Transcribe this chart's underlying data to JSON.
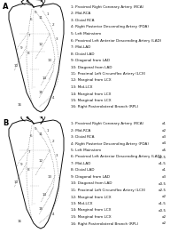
{
  "title_A": "A",
  "title_B": "B",
  "bg_color": "#ffffff",
  "legend_A": [
    "1: Proximal Right Coronary Artery (RCA)",
    "2: Mid-RCA",
    "3: Distal RCA",
    "4: Right Posterior Descending Artery (PDA)",
    "5: Left Mainstem",
    "6: Proximal Left Anterior Descending Artery (LAD)",
    "7: Mid-LAD",
    "8: Distal LAD",
    "9: Diagonal from LAD",
    "10: Diagonal from LAD",
    "11: Proximal Left Circumflex Artery (LCX)",
    "12: Marginal from LCX",
    "13: Mid-LCX",
    "14: Marginal from LCX",
    "15: Marginal from LCX",
    "16: Right Posterolateral Branch (RPL)"
  ],
  "legend_B_labels": [
    "1: Proximal Right Coronary Artery (RCA)",
    "2: Mid-RCA",
    "3: Distal RCA",
    "4: Right Posterior Descending Artery (PDA)",
    "5: Left Mainstem",
    "6: Proximal Left Anterior Descending Artery (LAD)",
    "7: Mid-LAD",
    "8: Distal LAD",
    "9: Diagonal from LAD",
    "10: Diagonal from LAD",
    "11: Proximal Left Circumflex Artery (LCX)",
    "12: Marginal from LCX",
    "13: Mid-LCX",
    "14: Marginal from LCX",
    "15: Marginal from LCX",
    "16: Right Posterolateral Branch (RPL)"
  ],
  "legend_B_values": [
    "x1",
    "x2",
    "x3",
    "x4",
    "x5",
    "x2.5",
    "x1.5",
    "x1",
    "x3",
    "x0.5",
    "x2.5",
    "x2",
    "x1.5",
    "x0.5",
    "x2",
    "x2"
  ],
  "num_labels_heart": [
    "1",
    "2",
    "3",
    "4",
    "5",
    "6",
    "7",
    "8",
    "9",
    "10",
    "11",
    "12",
    "13",
    "14",
    "15",
    "16"
  ]
}
